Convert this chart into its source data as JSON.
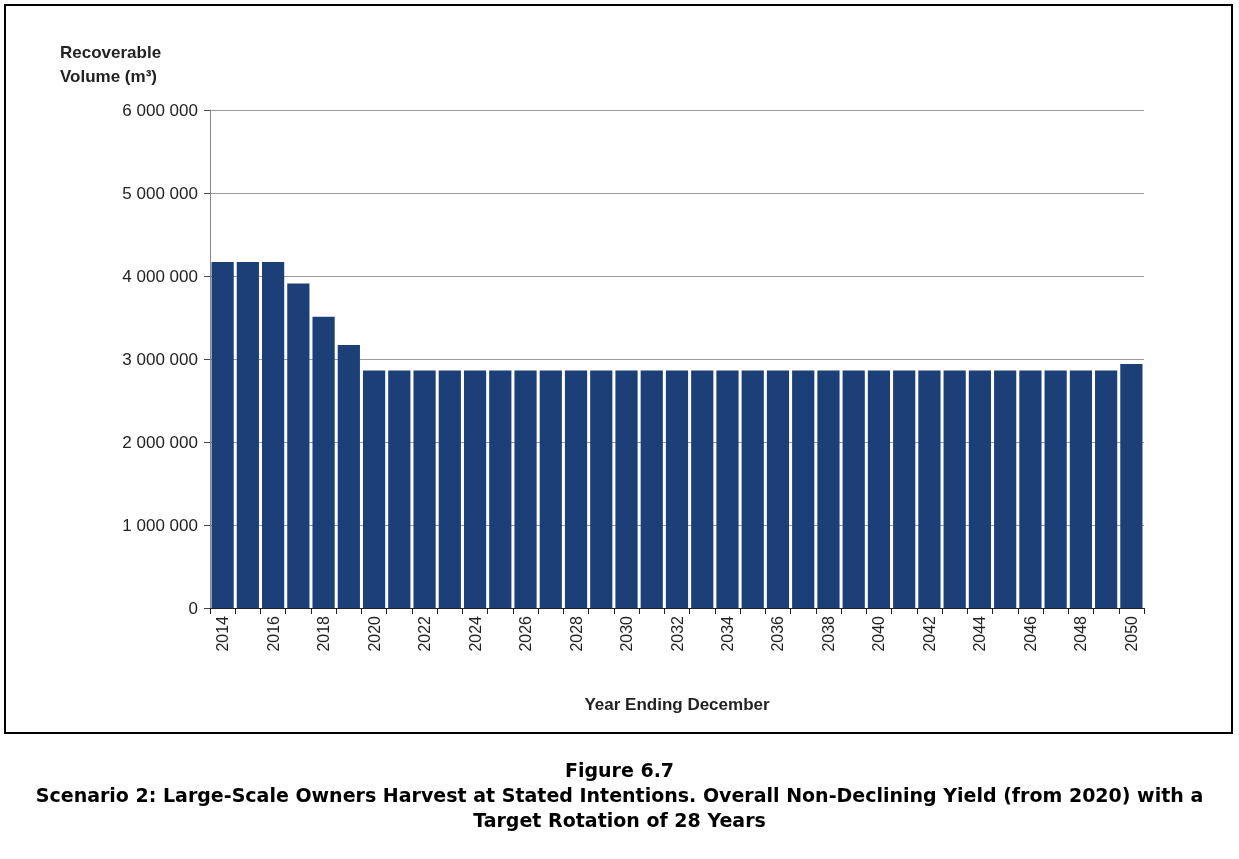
{
  "chart_data": {
    "type": "bar",
    "title": "Figure 6.7",
    "subtitle": "Scenario 2: Large-Scale Owners Harvest at Stated Intentions. Overall Non-Declining Yield (from 2020) with a Target Rotation of 28 Years",
    "xlabel": "Year Ending December",
    "ylabel": "Recoverable Volume (m³)",
    "categories": [
      "2014",
      null,
      "2016",
      null,
      "2018",
      null,
      "2020",
      null,
      "2022",
      null,
      "2024",
      null,
      "2026",
      null,
      "2028",
      null,
      "2030",
      null,
      "2032",
      null,
      "2034",
      null,
      "2036",
      null,
      "2038",
      null,
      "2040",
      null,
      "2042",
      null,
      "2044",
      null,
      "2046",
      null,
      "2048",
      null,
      "2050"
    ],
    "values": [
      4170000,
      4170000,
      4170000,
      3910000,
      3510000,
      3170000,
      2860000,
      2860000,
      2860000,
      2860000,
      2860000,
      2860000,
      2860000,
      2860000,
      2860000,
      2860000,
      2860000,
      2860000,
      2860000,
      2860000,
      2860000,
      2860000,
      2860000,
      2860000,
      2860000,
      2860000,
      2860000,
      2860000,
      2860000,
      2860000,
      2860000,
      2860000,
      2860000,
      2860000,
      2860000,
      2860000,
      2940000
    ],
    "color": "#1c3f77",
    "ylim": [
      0,
      6000000
    ],
    "yticks": [
      0,
      {
        "value": 1000000,
        "label": "1 000 000"
      },
      {
        "value": 2000000,
        "label": "2 000 000"
      },
      {
        "value": 3000000,
        "label": "3 000 000"
      },
      {
        "value": 4000000,
        "label": "4 000 000"
      },
      {
        "value": 5000000,
        "label": "5 000 000"
      },
      {
        "value": 6000000,
        "label": "6 000 000"
      }
    ],
    "grid": "y"
  }
}
